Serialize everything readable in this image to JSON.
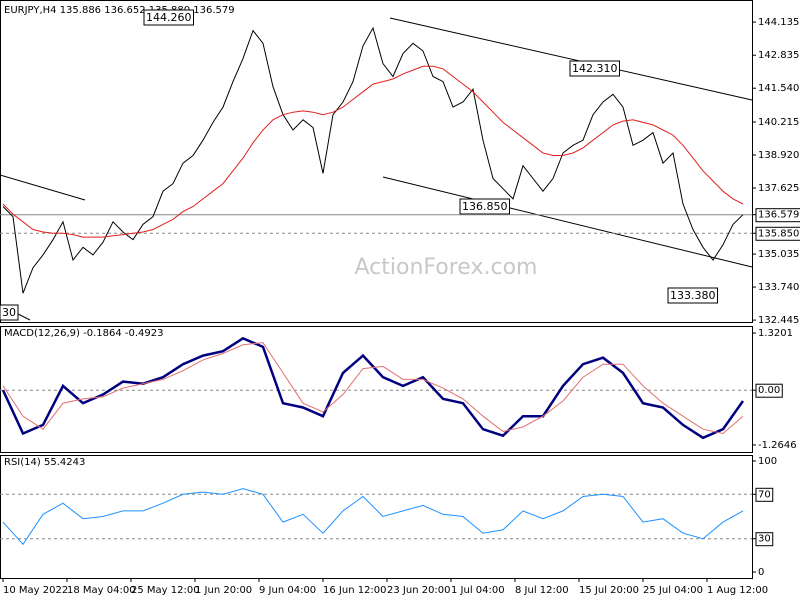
{
  "chart_data": [
    {
      "type": "line",
      "title": "EURJPY,H4  135.886 136.652 135.880 136.579",
      "watermark": "ActionForex.com",
      "annotations": [
        "144.260",
        "142.310",
        "136.850",
        "133.380",
        "30"
      ],
      "xlim": [
        0,
        74
      ],
      "ylim": [
        132.37,
        145.0
      ],
      "yticks": [
        144.135,
        142.835,
        {
          "value": 141.54,
          "label": "141.540"
        },
        140.215,
        {
          "value": 138.92,
          "label": "138.920"
        },
        137.625,
        {
          "value": 136.579,
          "label": "136.579",
          "line": "solid"
        },
        {
          "value": 135.85,
          "label": "135.850",
          "line": "dashed"
        },
        135.035,
        {
          "value": 133.74,
          "label": "133.740"
        },
        132.445
      ],
      "series": [
        {
          "name": "EURJPY",
          "color": "#000000",
          "values": [
            136.9,
            136.5,
            133.5,
            134.5,
            135.0,
            135.6,
            136.3,
            134.8,
            135.3,
            135.0,
            135.5,
            136.3,
            135.9,
            135.6,
            136.2,
            136.5,
            137.5,
            137.8,
            138.6,
            138.9,
            139.5,
            140.2,
            140.8,
            141.8,
            142.7,
            143.8,
            143.3,
            141.6,
            140.5,
            139.9,
            140.3,
            140.0,
            138.2,
            140.5,
            141.0,
            141.8,
            143.2,
            143.9,
            142.5,
            142.0,
            142.9,
            143.3,
            143.0,
            142.0,
            141.8,
            140.8,
            141.0,
            141.5,
            139.5,
            138.0,
            137.6,
            137.2,
            138.5,
            138.0,
            137.5,
            138.0,
            139.0,
            139.3,
            139.5,
            140.5,
            141.0,
            141.3,
            140.8,
            139.3,
            139.5,
            139.8,
            138.6,
            139.0,
            137.0,
            136.0,
            135.3,
            134.8,
            135.4,
            136.2,
            136.579
          ]
        },
        {
          "name": "MA",
          "color": "#e0201e",
          "values": [
            137.0,
            136.6,
            136.3,
            136.0,
            135.9,
            135.85,
            135.85,
            135.8,
            135.7,
            135.7,
            135.7,
            135.75,
            135.8,
            135.85,
            135.9,
            136.0,
            136.2,
            136.4,
            136.7,
            136.9,
            137.2,
            137.5,
            137.8,
            138.3,
            138.8,
            139.4,
            139.9,
            140.3,
            140.5,
            140.6,
            140.65,
            140.6,
            140.5,
            140.6,
            140.8,
            141.1,
            141.4,
            141.7,
            141.8,
            141.9,
            142.1,
            142.25,
            142.4,
            142.4,
            142.3,
            142.0,
            141.7,
            141.4,
            141.0,
            140.6,
            140.2,
            139.9,
            139.6,
            139.3,
            139.0,
            138.9,
            138.9,
            139.0,
            139.2,
            139.5,
            139.8,
            140.1,
            140.25,
            140.3,
            140.2,
            140.1,
            139.9,
            139.7,
            139.3,
            138.8,
            138.3,
            137.9,
            137.5,
            137.2,
            137.0
          ]
        }
      ]
    },
    {
      "type": "line",
      "title": "MACD(12,26,9) -0.1864 -0.4923",
      "xlim": [
        0,
        37
      ],
      "ylim": [
        -1.45,
        1.46
      ],
      "yticks": [
        1.3201,
        {
          "value": 0,
          "label": "0.00",
          "line": "dashed"
        },
        -1.2646
      ],
      "series": [
        {
          "name": "MACD",
          "color": "#000080",
          "width": 2.5,
          "values": [
            0.0,
            -1.0,
            -0.8,
            0.1,
            -0.3,
            -0.1,
            0.2,
            0.15,
            0.3,
            0.6,
            0.8,
            0.9,
            1.2,
            1.0,
            -0.3,
            -0.4,
            -0.6,
            0.4,
            0.8,
            0.3,
            0.1,
            0.3,
            -0.2,
            -0.3,
            -0.9,
            -1.05,
            -0.6,
            -0.6,
            0.1,
            0.6,
            0.75,
            0.4,
            -0.3,
            -0.4,
            -0.8,
            -1.1,
            -0.9,
            -0.25
          ]
        },
        {
          "name": "Signal",
          "color": "#e07070",
          "width": 1,
          "values": [
            0.1,
            -0.6,
            -0.9,
            -0.3,
            -0.2,
            -0.15,
            0.05,
            0.15,
            0.25,
            0.45,
            0.7,
            0.85,
            1.05,
            1.1,
            0.4,
            -0.3,
            -0.5,
            -0.1,
            0.5,
            0.55,
            0.25,
            0.25,
            0.05,
            -0.2,
            -0.6,
            -0.95,
            -0.85,
            -0.6,
            -0.25,
            0.3,
            0.6,
            0.6,
            0.1,
            -0.3,
            -0.6,
            -0.9,
            -1.0,
            -0.6
          ]
        }
      ]
    },
    {
      "type": "line",
      "title": "RSI(14) 55.4243",
      "xlim": [
        0,
        37
      ],
      "ylim": [
        -5.4,
        104.5
      ],
      "yticks": [
        100,
        {
          "value": 70,
          "label": "70",
          "line": "dashed"
        },
        {
          "value": 30,
          "label": "30",
          "line": "dashed"
        },
        0
      ],
      "xticks": [
        {
          "value": 0,
          "label": "10 May 2022"
        },
        {
          "value": 3.2,
          "label": "18 May 04:00"
        },
        {
          "value": 6.4,
          "label": "25 May 12:00"
        },
        {
          "value": 9.6,
          "label": "1 Jun 20:00"
        },
        {
          "value": 12.8,
          "label": "9 Jun 04:00"
        },
        {
          "value": 16,
          "label": "16 Jun 12:00"
        },
        {
          "value": 19.2,
          "label": "23 Jun 20:00"
        },
        {
          "value": 22.4,
          "label": "1 Jul 04:00"
        },
        {
          "value": 25.6,
          "label": "8 Jul 12:00"
        },
        {
          "value": 28.8,
          "label": "15 Jul 20:00"
        },
        {
          "value": 32,
          "label": "25 Jul 04:00"
        },
        {
          "value": 35.2,
          "label": "1 Aug 12:00"
        }
      ],
      "series": [
        {
          "name": "RSI",
          "color": "#1e90ff",
          "width": 1,
          "values": [
            45,
            25,
            52,
            62,
            48,
            50,
            55,
            55,
            62,
            70,
            72,
            70,
            75,
            70,
            45,
            52,
            35,
            55,
            68,
            50,
            55,
            60,
            52,
            50,
            35,
            38,
            55,
            48,
            55,
            68,
            70,
            68,
            45,
            48,
            35,
            30,
            45,
            55
          ]
        }
      ]
    }
  ]
}
